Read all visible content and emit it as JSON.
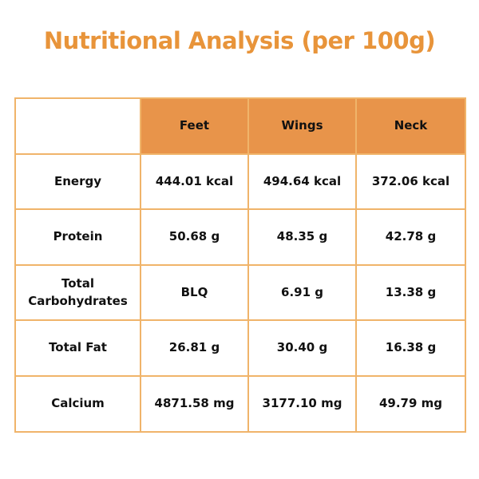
{
  "title": "Nutritional Analysis (per 100g)",
  "columns": [
    "Feet",
    "Wings",
    "Neck"
  ],
  "rows": [
    {
      "label": "Energy",
      "values": [
        "444.01 kcal",
        "494.64 kcal",
        "372.06 kcal"
      ]
    },
    {
      "label": "Protein",
      "values": [
        "50.68 g",
        "48.35 g",
        "42.78 g"
      ]
    },
    {
      "label": "Total Carbohydrates",
      "values": [
        "BLQ",
        "6.91 g",
        "13.38 g"
      ]
    },
    {
      "label": "Total Fat",
      "values": [
        "26.81 g",
        "30.40 g",
        "16.38 g"
      ]
    },
    {
      "label": "Calcium",
      "values": [
        "4871.58 mg",
        "3177.10 mg",
        "49.79 mg"
      ]
    }
  ],
  "colors": {
    "title": "#e8943a",
    "header_bg": "#e8944a",
    "border": "#f0b46a"
  }
}
